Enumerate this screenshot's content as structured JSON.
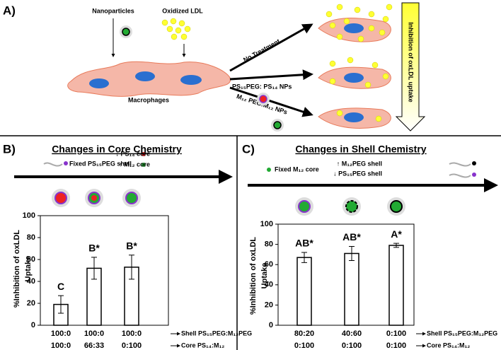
{
  "panel_a": {
    "label": "A)",
    "nanoparticles": "Nanoparticles",
    "oxidized_ldl": "Oxidized LDL",
    "macrophages": "Macrophages",
    "no_treatment": "No Treatment",
    "ps_treatment": "PS₁₅PEG: PS₁₄ NPs",
    "m_treatment": "M₁₂ PEG:M₁₂ NPs",
    "inhibition_arrow": "Inhibition of oxLDL uptake"
  },
  "chart_data": [
    {
      "type": "bar",
      "panel": "B)",
      "title": "Changes in Core Chemistry",
      "fixed_label": "Fixed PS₁₅PEG shell",
      "change_labels": [
        "↓ PS₁₄ core",
        "↑ M₁₂ core"
      ],
      "y_label": [
        "%Inhibition of oxLDL",
        "Uptake"
      ],
      "categories": [
        [
          "100:0",
          "100:0"
        ],
        [
          "100:0",
          "66:33"
        ],
        [
          "100:0",
          "0:100"
        ]
      ],
      "row_labels": [
        "Shell PS₁₅PEG:M₁₂PEG",
        "Core PS₁₄:M₁₂"
      ],
      "values": [
        19,
        52,
        53
      ],
      "errors": [
        8,
        10,
        11
      ],
      "annotations": [
        "C",
        "B*",
        "B*"
      ],
      "color": "#ffffff",
      "ylim": [
        0,
        100
      ],
      "yticks": [
        0,
        20,
        40,
        60,
        80,
        100
      ]
    },
    {
      "type": "bar",
      "panel": "C)",
      "title": "Changes in Shell Chemistry",
      "fixed_label": "Fixed M₁₂ core",
      "change_labels": [
        "↑ M₁₂PEG shell",
        "↓ PS₁₅PEG shell"
      ],
      "y_label": [
        "%Inhibition of oxLDL",
        "Uptake"
      ],
      "categories": [
        [
          "80:20",
          "0:100"
        ],
        [
          "40:60",
          "0:100"
        ],
        [
          "0:100",
          "0:100"
        ]
      ],
      "row_labels": [
        "Shell PS₁₅PEG:M₁₂PEG",
        "Core PS₁₄:M₁₂"
      ],
      "values": [
        67,
        71,
        79
      ],
      "errors": [
        5,
        7,
        2
      ],
      "annotations": [
        "AB*",
        "AB*",
        "A*"
      ],
      "color": "#ffffff",
      "ylim": [
        0,
        100
      ],
      "yticks": [
        0,
        20,
        40,
        60,
        80,
        100
      ]
    }
  ]
}
